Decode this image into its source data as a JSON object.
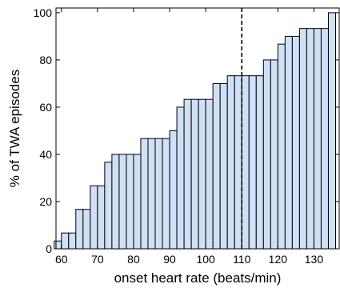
{
  "chart_data": {
    "type": "bar",
    "title": "",
    "xlabel": "onset heart rate  (beats/min)",
    "ylabel": "% of TWA episodes",
    "xlim": [
      58.5,
      137
    ],
    "ylim": [
      0,
      102
    ],
    "bin_width": 2,
    "x": [
      59,
      61,
      63,
      65,
      67,
      69,
      71,
      73,
      75,
      77,
      79,
      81,
      83,
      85,
      87,
      89,
      91,
      93,
      95,
      97,
      99,
      101,
      103,
      105,
      107,
      109,
      111,
      113,
      115,
      117,
      119,
      121,
      123,
      125,
      127,
      129,
      131,
      133,
      135
    ],
    "values": [
      3.3,
      6.7,
      6.7,
      16.7,
      16.7,
      26.7,
      26.7,
      36.7,
      40,
      40,
      40,
      40,
      46.7,
      46.7,
      46.7,
      46.7,
      50,
      60,
      63.3,
      63.3,
      63.3,
      63.3,
      70,
      70,
      73.3,
      73.3,
      73.3,
      73.3,
      73.3,
      80,
      80,
      86.7,
      90,
      90,
      93.3,
      93.3,
      93.3,
      93.3,
      100
    ],
    "xticks": [
      "60",
      "70",
      "80",
      "90",
      "100",
      "110",
      "120",
      "130"
    ],
    "xtick_values": [
      60,
      70,
      80,
      90,
      100,
      110,
      120,
      130
    ],
    "yticks": [
      "0",
      "20",
      "40",
      "60",
      "80",
      "100"
    ],
    "ytick_values": [
      0,
      20,
      40,
      60,
      80,
      100
    ],
    "reference_line_x": 110,
    "grid": false,
    "bar_color": "#cfe0f7",
    "edge_color": "#000000"
  }
}
